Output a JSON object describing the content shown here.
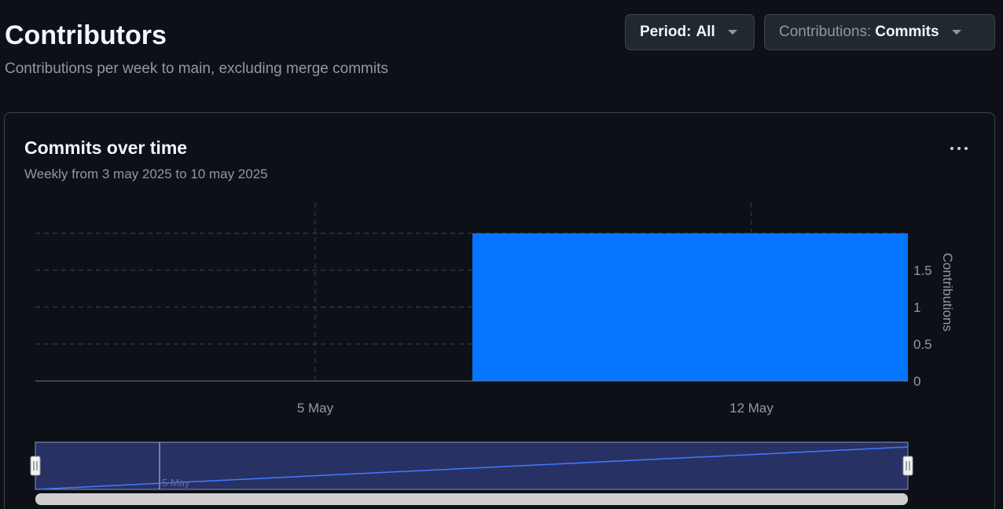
{
  "header": {
    "title": "Contributors",
    "subtitle": "Contributions per week to main, excluding merge commits"
  },
  "filters": {
    "period_prefix": "Period:",
    "period_value": "All",
    "contributions_prefix": "Contributions:",
    "contributions_value": "Commits"
  },
  "card": {
    "title": "Commits over time",
    "subtitle": "Weekly from 3 may 2025 to 10 may 2025",
    "menu_icon": "kebab-horizontal-icon"
  },
  "colors": {
    "bar": "#0675ff",
    "grid": "#3d444d",
    "text_muted": "#9198a1",
    "navigator_fill": "#283163",
    "navigator_line": "#3f7bff",
    "scrollbar": "#cfcfcf"
  },
  "chart_data": {
    "type": "bar",
    "categories": [
      "3 May 2025",
      "10 May 2025"
    ],
    "values": [
      0,
      2
    ],
    "x_ticks": [
      "5 May",
      "12 May"
    ],
    "y_ticks": [
      "0",
      "0.5",
      "1",
      "1.5"
    ],
    "ylabel": "Contributions",
    "ylim": [
      0,
      2
    ],
    "grid": true,
    "navigator": {
      "label": "5 May"
    }
  }
}
